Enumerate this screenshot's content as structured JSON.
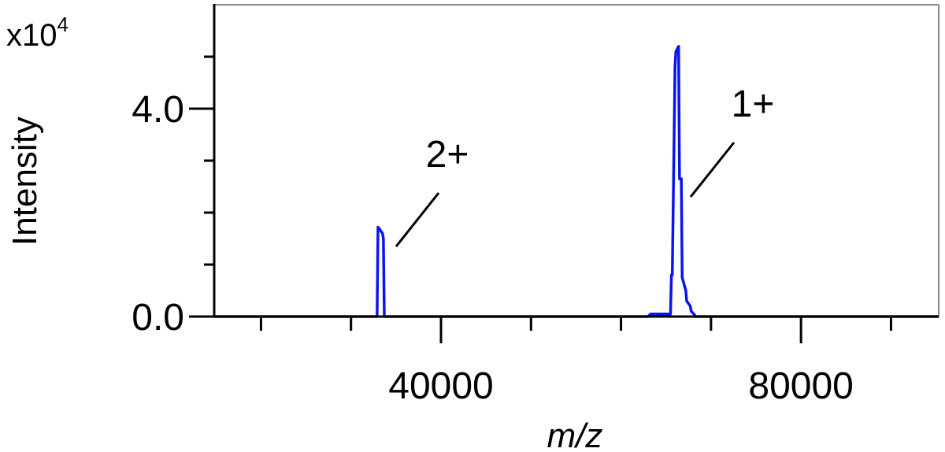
{
  "chart_data": {
    "type": "line",
    "x_label": "m/z",
    "y_label": "Intensity",
    "y_multiplier": {
      "base": "x10",
      "exponent": "4"
    },
    "xlim": [
      14800,
      95300
    ],
    "ylim": [
      0,
      6
    ],
    "xticks": [
      40000,
      80000
    ],
    "x_minor_ticks": [
      20000,
      30000,
      50000,
      60000,
      70000,
      90000
    ],
    "yticks": [
      {
        "value": 0,
        "label": "0.0"
      },
      {
        "value": 4,
        "label": "4.0"
      }
    ],
    "y_minor_ticks": [
      1,
      2,
      3,
      5
    ],
    "x": [
      14800,
      32900,
      33000,
      33100,
      33500,
      33600,
      33700,
      63000,
      63300,
      65500,
      65600,
      65700,
      66000,
      66100,
      66400,
      66500,
      66700,
      66800,
      67200,
      67300,
      67700,
      67800,
      68100,
      68300,
      95300
    ],
    "series": [
      {
        "color": "#0a14f0",
        "values": [
          0,
          0,
          1.72,
          1.7,
          1.6,
          1.5,
          0,
          0,
          0.05,
          0.05,
          0.8,
          0.8,
          4.8,
          5.1,
          5.2,
          2.65,
          2.65,
          0.75,
          0.5,
          0.3,
          0.2,
          0.1,
          0.05,
          0,
          0
        ]
      }
    ],
    "annotations": [
      "2+",
      "1+"
    ]
  }
}
